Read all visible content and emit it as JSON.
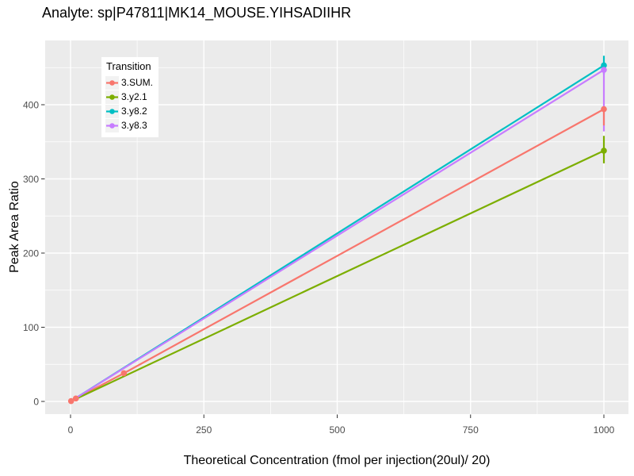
{
  "title": "Analyte: sp|P47811|MK14_MOUSE.YIHSADIIHR",
  "axes": {
    "x": {
      "label": "Theoretical Concentration (fmol per injection(20ul)/ 20)",
      "ticks": [
        0,
        250,
        500,
        750,
        1000
      ],
      "minor_ticks": [
        125,
        375,
        625,
        875
      ],
      "range": [
        0,
        1000
      ]
    },
    "y": {
      "label": "Peak Area Ratio",
      "ticks": [
        0,
        100,
        200,
        300,
        400
      ],
      "minor_ticks": [
        50,
        150,
        250,
        350,
        450
      ],
      "range": [
        0,
        486
      ]
    }
  },
  "legend": {
    "title": "Transition",
    "items": [
      {
        "label": "3.SUM.",
        "color": "#F8766D"
      },
      {
        "label": "3.y2.1",
        "color": "#7CAE00"
      },
      {
        "label": "3.y8.2",
        "color": "#00BFC4"
      },
      {
        "label": "3.y8.3",
        "color": "#C77CFF"
      }
    ]
  },
  "chart_data": {
    "type": "line",
    "title": "Analyte: sp|P47811|MK14_MOUSE.YIHSADIIHR",
    "xlabel": "Theoretical Concentration (fmol per injection(20ul)/ 20)",
    "ylabel": "Peak Area Ratio",
    "xlim": [
      0,
      1000
    ],
    "ylim": [
      0,
      486
    ],
    "grid": "white-on-gray",
    "legend_position": "inside-top-left",
    "series": [
      {
        "name": "3.SUM.",
        "color": "#F8766D",
        "line": [
          [
            1,
            0.5
          ],
          [
            10,
            4
          ],
          [
            100,
            38
          ],
          [
            1000,
            394
          ]
        ],
        "markers": [
          [
            1,
            0.5
          ],
          [
            10,
            4
          ],
          [
            100,
            38
          ],
          [
            1000,
            394
          ]
        ],
        "errorbar": {
          "x": 1000,
          "low": 372,
          "high": 394
        }
      },
      {
        "name": "3.y2.1",
        "color": "#7CAE00",
        "line": [
          [
            1,
            0.3
          ],
          [
            1000,
            338
          ]
        ],
        "markers": [
          [
            1000,
            338
          ]
        ],
        "errorbar": {
          "x": 1000,
          "low": 321,
          "high": 358
        }
      },
      {
        "name": "3.y8.2",
        "color": "#00BFC4",
        "line": [
          [
            1,
            0.5
          ],
          [
            1000,
            453
          ]
        ],
        "markers": [
          [
            1000,
            453
          ]
        ],
        "errorbar": {
          "x": 1000,
          "low": 441,
          "high": 466
        }
      },
      {
        "name": "3.y8.3",
        "color": "#C77CFF",
        "line": [
          [
            1,
            0.5
          ],
          [
            1000,
            447
          ]
        ],
        "markers": [
          [
            1000,
            447
          ]
        ],
        "errorbar": {
          "x": 1000,
          "low": 364,
          "high": 447
        }
      }
    ]
  },
  "colors": {
    "panel_background": "#EBEBEB",
    "gridline": "#FFFFFF",
    "tick_label": "#4D4D4D",
    "tick_mark": "#333333",
    "legend_key_background": "#F2F2F2",
    "text": "#000000"
  }
}
